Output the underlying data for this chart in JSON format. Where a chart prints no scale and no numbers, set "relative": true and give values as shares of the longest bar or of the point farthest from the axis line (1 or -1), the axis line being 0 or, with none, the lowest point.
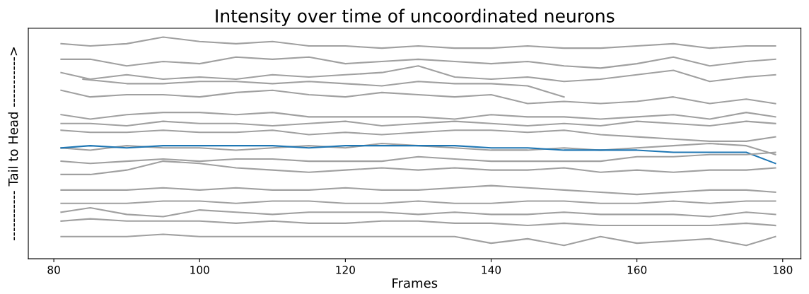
{
  "chart_data": {
    "type": "line",
    "title": "Intensity over time of uncoordinated neurons",
    "xlabel": "Frames",
    "ylabel": "----------- Tail to Head ----------->",
    "relative": true,
    "x": [
      81,
      85,
      90,
      95,
      100,
      105,
      110,
      115,
      120,
      125,
      130,
      135,
      140,
      145,
      150,
      155,
      160,
      165,
      170,
      175,
      179
    ],
    "xlim": [
      76.5,
      182.5
    ],
    "xticks": [
      80,
      100,
      120,
      140,
      160,
      180
    ],
    "marker": "none",
    "line_style": "solid",
    "tick_labels": "x",
    "series": [
      {
        "color": "#a0a0a0",
        "values": [
          0.97,
          0.96,
          0.97,
          1.0,
          0.98,
          0.97,
          0.98,
          0.96,
          0.96,
          0.95,
          0.96,
          0.95,
          0.95,
          0.96,
          0.95,
          0.95,
          0.96,
          0.97,
          0.95,
          0.96,
          0.96
        ]
      },
      {
        "color": "#a0a0a0",
        "values": [
          0.9,
          0.9,
          0.87,
          0.89,
          0.88,
          0.91,
          0.9,
          0.91,
          0.88,
          0.89,
          0.9,
          0.89,
          0.88,
          0.89,
          0.87,
          0.86,
          0.88,
          0.91,
          0.87,
          0.89,
          0.9
        ]
      },
      {
        "color": "#a0a0a0",
        "values": [
          0.84,
          0.81,
          0.83,
          0.81,
          0.82,
          0.81,
          0.83,
          0.82,
          0.83,
          0.84,
          0.87,
          0.82,
          0.81,
          0.82,
          0.8,
          0.81,
          0.83,
          0.85,
          0.8,
          0.82,
          0.83
        ]
      },
      {
        "color": "#a0a0a0",
        "x": [
          84,
          90,
          95,
          100,
          105,
          110,
          115,
          120,
          125,
          130,
          135,
          140,
          145,
          150
        ],
        "values": [
          0.81,
          0.79,
          0.79,
          0.8,
          0.8,
          0.79,
          0.8,
          0.79,
          0.78,
          0.8,
          0.79,
          0.79,
          0.78,
          0.73
        ]
      },
      {
        "color": "#a0a0a0",
        "values": [
          0.76,
          0.73,
          0.74,
          0.74,
          0.73,
          0.75,
          0.76,
          0.74,
          0.73,
          0.75,
          0.74,
          0.73,
          0.74,
          0.7,
          0.71,
          0.7,
          0.71,
          0.73,
          0.7,
          0.72,
          0.7
        ]
      },
      {
        "color": "#a0a0a0",
        "values": [
          0.65,
          0.63,
          0.65,
          0.66,
          0.66,
          0.65,
          0.66,
          0.64,
          0.64,
          0.64,
          0.64,
          0.63,
          0.65,
          0.64,
          0.64,
          0.63,
          0.64,
          0.65,
          0.63,
          0.66,
          0.64
        ]
      },
      {
        "color": "#a0a0a0",
        "values": [
          0.61,
          0.61,
          0.6,
          0.62,
          0.61,
          0.61,
          0.6,
          0.61,
          0.62,
          0.6,
          0.61,
          0.62,
          0.61,
          0.6,
          0.61,
          0.6,
          0.62,
          0.61,
          0.6,
          0.62,
          0.61
        ]
      },
      {
        "color": "#a0a0a0",
        "values": [
          0.58,
          0.57,
          0.57,
          0.58,
          0.57,
          0.57,
          0.58,
          0.56,
          0.57,
          0.56,
          0.57,
          0.58,
          0.58,
          0.57,
          0.58,
          0.56,
          0.55,
          0.54,
          0.53,
          0.53,
          0.55
        ]
      },
      {
        "color": "#a0a0a0",
        "values": [
          0.5,
          0.49,
          0.51,
          0.5,
          0.5,
          0.49,
          0.5,
          0.51,
          0.5,
          0.52,
          0.51,
          0.5,
          0.49,
          0.49,
          0.5,
          0.49,
          0.5,
          0.51,
          0.52,
          0.51,
          0.47
        ]
      },
      {
        "color": "#1f77b4",
        "values": [
          0.5,
          0.51,
          0.5,
          0.51,
          0.51,
          0.51,
          0.51,
          0.5,
          0.51,
          0.51,
          0.51,
          0.51,
          0.5,
          0.5,
          0.49,
          0.49,
          0.49,
          0.48,
          0.48,
          0.48,
          0.43
        ]
      },
      {
        "color": "#a0a0a0",
        "values": [
          0.44,
          0.43,
          0.44,
          0.45,
          0.44,
          0.45,
          0.45,
          0.44,
          0.44,
          0.44,
          0.46,
          0.45,
          0.44,
          0.44,
          0.44,
          0.44,
          0.46,
          0.46,
          0.47,
          0.47,
          0.48
        ]
      },
      {
        "color": "#a0a0a0",
        "values": [
          0.38,
          0.38,
          0.4,
          0.44,
          0.43,
          0.41,
          0.4,
          0.39,
          0.4,
          0.41,
          0.4,
          0.41,
          0.4,
          0.4,
          0.41,
          0.39,
          0.4,
          0.39,
          0.4,
          0.4,
          0.41
        ]
      },
      {
        "color": "#a0a0a0",
        "values": [
          0.31,
          0.31,
          0.31,
          0.32,
          0.31,
          0.32,
          0.31,
          0.31,
          0.32,
          0.31,
          0.31,
          0.32,
          0.33,
          0.32,
          0.31,
          0.3,
          0.29,
          0.3,
          0.31,
          0.31,
          0.3
        ]
      },
      {
        "color": "#a0a0a0",
        "values": [
          0.25,
          0.25,
          0.25,
          0.26,
          0.26,
          0.25,
          0.26,
          0.26,
          0.25,
          0.25,
          0.26,
          0.25,
          0.25,
          0.26,
          0.26,
          0.25,
          0.25,
          0.26,
          0.25,
          0.26,
          0.26
        ]
      },
      {
        "color": "#a0a0a0",
        "values": [
          0.21,
          0.23,
          0.2,
          0.19,
          0.22,
          0.21,
          0.2,
          0.21,
          0.21,
          0.21,
          0.2,
          0.21,
          0.2,
          0.2,
          0.21,
          0.2,
          0.2,
          0.2,
          0.19,
          0.21,
          0.2
        ]
      },
      {
        "color": "#a0a0a0",
        "values": [
          0.17,
          0.18,
          0.17,
          0.17,
          0.17,
          0.16,
          0.17,
          0.16,
          0.16,
          0.17,
          0.17,
          0.16,
          0.16,
          0.15,
          0.16,
          0.15,
          0.15,
          0.15,
          0.15,
          0.16,
          0.15
        ]
      },
      {
        "color": "#a0a0a0",
        "values": [
          0.1,
          0.1,
          0.1,
          0.11,
          0.1,
          0.1,
          0.1,
          0.1,
          0.1,
          0.1,
          0.1,
          0.1,
          0.07,
          0.09,
          0.06,
          0.1,
          0.07,
          0.08,
          0.09,
          0.06,
          0.1
        ]
      }
    ]
  }
}
